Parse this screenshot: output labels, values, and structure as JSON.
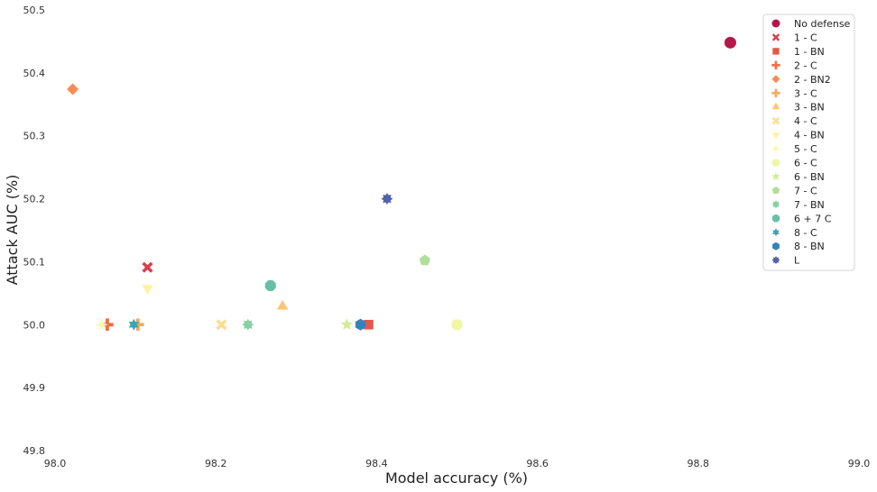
{
  "chart_data": {
    "type": "scatter",
    "title": "",
    "xlabel": "Model accuracy (%)",
    "ylabel": "Attack AUC (%)",
    "xlim": [
      98.0,
      99.0
    ],
    "ylim": [
      49.8,
      50.5
    ],
    "x_ticks": [
      "98.0",
      "98.2",
      "98.4",
      "98.6",
      "98.8",
      "99.0"
    ],
    "y_ticks": [
      "49.8",
      "49.9",
      "50.0",
      "50.1",
      "50.2",
      "50.3",
      "50.4",
      "50.5"
    ],
    "grid": false,
    "legend_position": "top-right",
    "series": [
      {
        "name": "No defense",
        "marker": "circle",
        "color": "#b5174a",
        "x": 98.84,
        "y": 50.448
      },
      {
        "name": "1 - C",
        "marker": "x",
        "color": "#d7414e",
        "x": 98.115,
        "y": 50.091
      },
      {
        "name": "1 - BN",
        "marker": "square",
        "color": "#e4584a",
        "x": 98.39,
        "y": 50.0
      },
      {
        "name": "2 - C",
        "marker": "plus",
        "color": "#f06e44",
        "x": 98.065,
        "y": 50.0
      },
      {
        "name": "2 - BN2",
        "marker": "diamond",
        "color": "#f78d52",
        "x": 98.022,
        "y": 50.374
      },
      {
        "name": "3 - C",
        "marker": "plus",
        "color": "#fba75d",
        "x": 98.103,
        "y": 50.0
      },
      {
        "name": "3 - BN",
        "marker": "triangle-up",
        "color": "#fdc471",
        "x": 98.283,
        "y": 50.029
      },
      {
        "name": "4 - C",
        "marker": "x",
        "color": "#fedd8a",
        "x": 98.207,
        "y": 50.0
      },
      {
        "name": "4 - BN",
        "marker": "triangle-down",
        "color": "#fff2a6",
        "x": 98.115,
        "y": 50.058
      },
      {
        "name": "5 - C",
        "marker": "star4",
        "color": "#fbf8b0",
        "x": 98.058,
        "y": 50.0
      },
      {
        "name": "6 - C",
        "marker": "octagon",
        "color": "#eef7a4",
        "x": 98.5,
        "y": 50.0
      },
      {
        "name": "6 - BN",
        "marker": "star",
        "color": "#d4ed9b",
        "x": 98.363,
        "y": 50.0
      },
      {
        "name": "7 - C",
        "marker": "pentagon",
        "color": "#b0df9c",
        "x": 98.46,
        "y": 50.102
      },
      {
        "name": "7 - BN",
        "marker": "star8",
        "color": "#89cfa5",
        "x": 98.24,
        "y": 50.0
      },
      {
        "name": "6 + 7 C",
        "marker": "octagon",
        "color": "#67c0a4",
        "x": 98.268,
        "y": 50.062
      },
      {
        "name": "8 - C",
        "marker": "star6",
        "color": "#459fb5",
        "x": 98.098,
        "y": 50.0
      },
      {
        "name": "8 - BN",
        "marker": "hexagon",
        "color": "#3582bd",
        "x": 98.38,
        "y": 50.0
      },
      {
        "name": "L",
        "marker": "star8",
        "color": "#4f62aa",
        "x": 98.413,
        "y": 50.2
      }
    ]
  }
}
